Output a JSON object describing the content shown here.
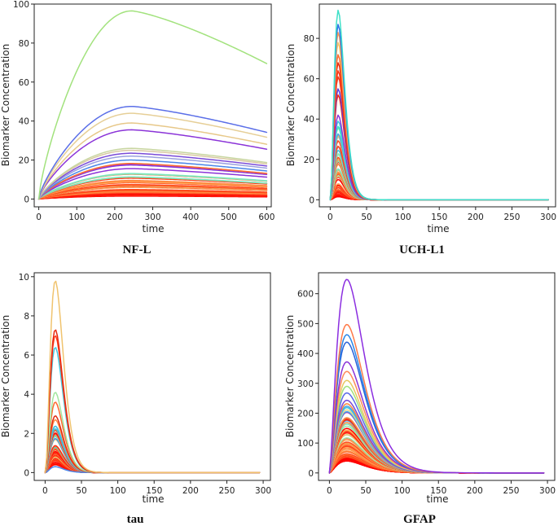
{
  "chart_data": [
    {
      "type": "line",
      "caption": "NF-L",
      "xlabel": "time",
      "ylabel": "Biomarker Concentration",
      "xlim": [
        -12,
        612
      ],
      "ylim": [
        -4,
        100
      ],
      "xticks": [
        0,
        100,
        200,
        300,
        400,
        500,
        600
      ],
      "yticks": [
        0,
        20,
        40,
        60,
        80,
        100
      ],
      "x_max": 600,
      "peak_time": 245,
      "end_ratio": 0.72,
      "series_count": 60,
      "series": [
        {
          "name": "s1",
          "color": "#a2e27d",
          "peak": 96.5
        },
        {
          "name": "s2",
          "color": "#5b6fe8",
          "peak": 47.5
        },
        {
          "name": "s3",
          "color": "#e6cf97",
          "peak": 44
        },
        {
          "name": "s4",
          "color": "#e7c889",
          "peak": 39
        },
        {
          "name": "s5",
          "color": "#8b34d8",
          "peak": 35.5
        },
        {
          "name": "s6",
          "color": "#c8d6a0",
          "peak": 26
        },
        {
          "name": "s7",
          "color": "#d9c8a4",
          "peak": 25
        },
        {
          "name": "s8",
          "color": "#7a4bd8",
          "peak": 23.5
        },
        {
          "name": "s9",
          "color": "#9aa0e0",
          "peak": 22
        },
        {
          "name": "s10",
          "color": "#4b86e8",
          "peak": 20
        }
      ],
      "max_small_peak": 19.5,
      "min_small_peak": 1.5
    },
    {
      "type": "line",
      "caption": "UCH-L1",
      "xlabel": "time",
      "ylabel": "Biomarker Concentration",
      "xlim": [
        -15,
        310
      ],
      "ylim": [
        -3.5,
        97
      ],
      "xticks": [
        0,
        50,
        100,
        150,
        200,
        250,
        300
      ],
      "yticks": [
        0,
        20,
        40,
        60,
        80
      ],
      "x_max": 300,
      "peak_time": 11,
      "series_count": 70,
      "series": [
        {
          "name": "s1",
          "color": "#3fe0c8",
          "peak": 94
        },
        {
          "name": "s2",
          "color": "#2a70e8",
          "peak": 87
        },
        {
          "name": "s3",
          "color": "#ff9a50",
          "peak": 83
        },
        {
          "name": "s4",
          "color": "#f0c56e",
          "peak": 78
        },
        {
          "name": "s5",
          "color": "#ff6a30",
          "peak": 72
        },
        {
          "name": "s6",
          "color": "#e82a10",
          "peak": 68
        },
        {
          "name": "s7",
          "color": "#ff3a18",
          "peak": 64
        },
        {
          "name": "s8",
          "color": "#f04020",
          "peak": 61
        },
        {
          "name": "s9",
          "color": "#5a3ad8",
          "peak": 55
        },
        {
          "name": "s10",
          "color": "#ff2a10",
          "peak": 52
        },
        {
          "name": "s11",
          "color": "#8b34d8",
          "peak": 42
        },
        {
          "name": "s12",
          "color": "#3fc8e0",
          "peak": 39
        }
      ],
      "max_small_peak": 38,
      "min_small_peak": 1.5
    },
    {
      "type": "line",
      "caption": "tau",
      "xlabel": "time",
      "ylabel": "Biomarker Concentration",
      "xlim": [
        -15,
        310
      ],
      "ylim": [
        -0.4,
        10.2
      ],
      "xticks": [
        0,
        50,
        100,
        150,
        200,
        250,
        300
      ],
      "yticks": [
        0,
        2,
        4,
        6,
        8,
        10
      ],
      "x_max": 295,
      "peak_time": 14,
      "series_count": 70,
      "series": [
        {
          "name": "s1",
          "color": "#f0c36e",
          "peak": 9.8
        },
        {
          "name": "s2",
          "color": "#e82a10",
          "peak": 7.3
        },
        {
          "name": "s3",
          "color": "#ff3a18",
          "peak": 7.0
        },
        {
          "name": "s4",
          "color": "#3fc8e0",
          "peak": 6.4
        },
        {
          "name": "s5",
          "color": "#a2e6a0",
          "peak": 4.1
        },
        {
          "name": "s6",
          "color": "#ff6a30",
          "peak": 3.6
        },
        {
          "name": "s7",
          "color": "#e02a10",
          "peak": 2.9
        },
        {
          "name": "s8",
          "color": "#ff8a40",
          "peak": 2.7
        },
        {
          "name": "s9",
          "color": "#4b86e8",
          "peak": 0.3
        }
      ],
      "max_small_peak": 2.5,
      "min_small_peak": 0.4
    },
    {
      "type": "line",
      "caption": "GFAP",
      "xlabel": "time",
      "ylabel": "Biomarker Concentration",
      "xlim": [
        -15,
        310
      ],
      "ylim": [
        -25,
        670
      ],
      "xticks": [
        0,
        50,
        100,
        150,
        200,
        250,
        300
      ],
      "yticks": [
        0,
        100,
        200,
        300,
        400,
        500,
        600
      ],
      "x_max": 295,
      "peak_time": 24,
      "series_count": 80,
      "series": [
        {
          "name": "s1",
          "color": "#8b2ee0",
          "peak": 648
        },
        {
          "name": "s2",
          "color": "#ff7a48",
          "peak": 497
        },
        {
          "name": "s3",
          "color": "#2a86e8",
          "peak": 463
        },
        {
          "name": "s4",
          "color": "#2a62d8",
          "peak": 438
        },
        {
          "name": "s5",
          "color": "#8b34d8",
          "peak": 372
        },
        {
          "name": "s6",
          "color": "#ff8a5a",
          "peak": 340
        },
        {
          "name": "s7",
          "color": "#e8c860",
          "peak": 310
        },
        {
          "name": "s8",
          "color": "#a2e27d",
          "peak": 290
        },
        {
          "name": "s9",
          "color": "#5a6ae8",
          "peak": 268
        }
      ],
      "max_small_peak": 255,
      "min_small_peak": 40
    }
  ]
}
